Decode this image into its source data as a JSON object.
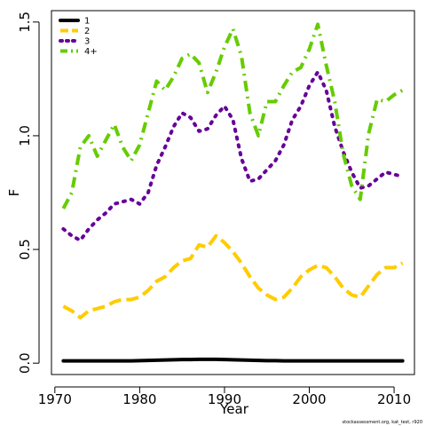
{
  "chart_data": {
    "type": "line",
    "xlabel": "Year",
    "ylabel": "F",
    "xlim": [
      1969.6,
      2012.4
    ],
    "ylim": [
      -0.05,
      1.55
    ],
    "xticks": [
      1970,
      1980,
      1990,
      2000,
      2010
    ],
    "yticks": [
      0.0,
      0.5,
      1.0,
      1.5
    ],
    "ytick_labels": [
      "0.0",
      "0.5",
      "1.0",
      "1.5"
    ],
    "legend_position": "top-left",
    "x": [
      1971,
      1972,
      1973,
      1974,
      1975,
      1976,
      1977,
      1978,
      1979,
      1980,
      1981,
      1982,
      1983,
      1984,
      1985,
      1986,
      1987,
      1988,
      1989,
      1990,
      1991,
      1992,
      1993,
      1994,
      1995,
      1996,
      1997,
      1998,
      1999,
      2000,
      2001,
      2002,
      2003,
      2004,
      2005,
      2006,
      2007,
      2008,
      2009,
      2010,
      2011
    ],
    "series": [
      {
        "name": "1",
        "color": "#000000",
        "dash": "solid",
        "values": [
          0.01,
          0.01,
          0.01,
          0.01,
          0.01,
          0.01,
          0.01,
          0.01,
          0.01,
          0.011,
          0.012,
          0.013,
          0.014,
          0.015,
          0.016,
          0.016,
          0.017,
          0.017,
          0.017,
          0.016,
          0.015,
          0.014,
          0.013,
          0.012,
          0.011,
          0.011,
          0.01,
          0.01,
          0.01,
          0.01,
          0.01,
          0.01,
          0.01,
          0.01,
          0.01,
          0.01,
          0.01,
          0.01,
          0.01,
          0.01,
          0.01
        ]
      },
      {
        "name": "2",
        "color": "#ffcc00",
        "dash": "dashed",
        "values": [
          0.25,
          0.23,
          0.2,
          0.23,
          0.24,
          0.25,
          0.27,
          0.28,
          0.28,
          0.29,
          0.32,
          0.36,
          0.38,
          0.42,
          0.45,
          0.46,
          0.52,
          0.51,
          0.56,
          0.53,
          0.49,
          0.44,
          0.38,
          0.33,
          0.3,
          0.28,
          0.29,
          0.33,
          0.38,
          0.41,
          0.43,
          0.42,
          0.38,
          0.33,
          0.3,
          0.29,
          0.34,
          0.39,
          0.42,
          0.42,
          0.44
        ]
      },
      {
        "name": "3",
        "color": "#660099",
        "dash": "dotted",
        "values": [
          0.59,
          0.56,
          0.54,
          0.59,
          0.63,
          0.66,
          0.7,
          0.71,
          0.72,
          0.7,
          0.75,
          0.87,
          0.95,
          1.04,
          1.1,
          1.08,
          1.02,
          1.03,
          1.09,
          1.13,
          1.07,
          0.9,
          0.8,
          0.81,
          0.85,
          0.89,
          0.96,
          1.07,
          1.13,
          1.22,
          1.28,
          1.2,
          1.04,
          0.93,
          0.84,
          0.77,
          0.78,
          0.81,
          0.84,
          0.83,
          0.82
        ]
      },
      {
        "name": "4+",
        "color": "#66cc00",
        "dash": "dashdot",
        "values": [
          0.68,
          0.75,
          0.95,
          1.0,
          0.91,
          0.98,
          1.05,
          0.95,
          0.89,
          0.96,
          1.1,
          1.24,
          1.2,
          1.26,
          1.34,
          1.36,
          1.32,
          1.19,
          1.28,
          1.39,
          1.47,
          1.35,
          1.1,
          1.0,
          1.15,
          1.15,
          1.22,
          1.28,
          1.3,
          1.38,
          1.49,
          1.31,
          1.15,
          0.92,
          0.78,
          0.72,
          1.01,
          1.16,
          1.15,
          1.18,
          1.2
        ]
      }
    ]
  },
  "footnote": "stockassessment.org, kat_test, r920"
}
